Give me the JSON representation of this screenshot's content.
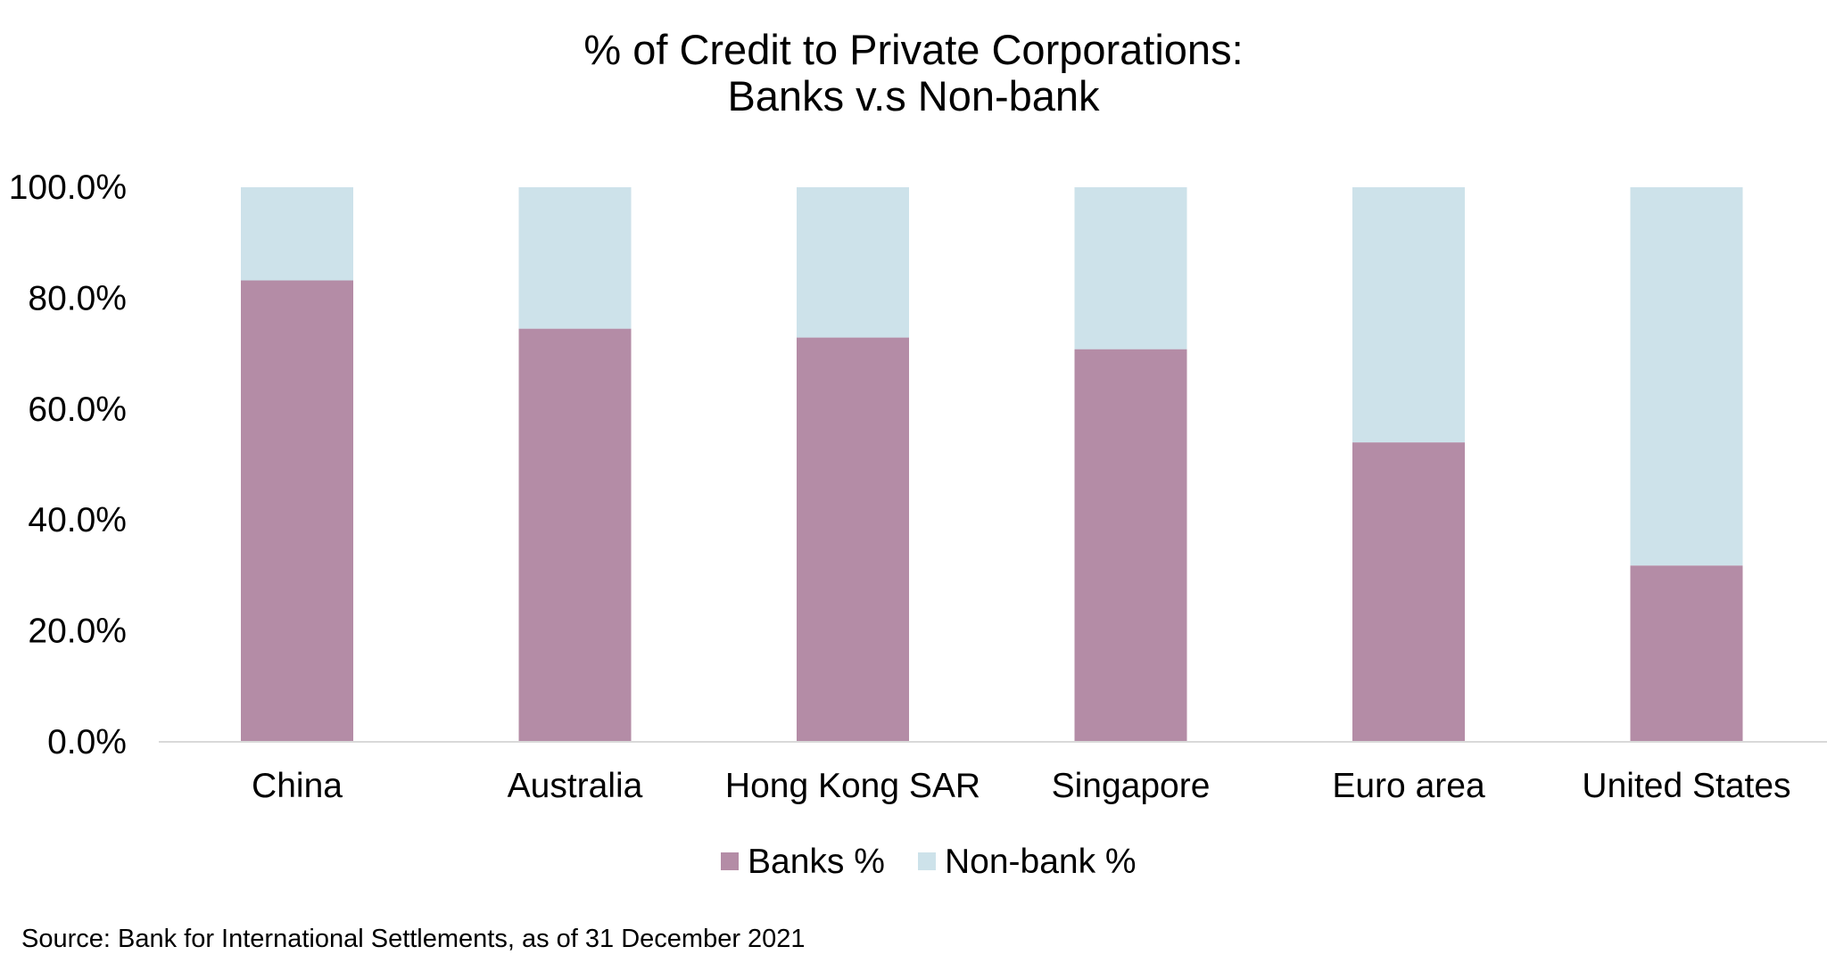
{
  "chart_data": {
    "type": "bar",
    "stacked": true,
    "title_lines": [
      "% of Credit to Private Corporations:",
      "Banks v.s Non-bank"
    ],
    "categories": [
      "China",
      "Australia",
      "Hong Kong SAR",
      "Singapore",
      "Euro area",
      "United States"
    ],
    "series": [
      {
        "name": "Banks %",
        "color": "#b48ca6",
        "values": [
          83.2,
          74.5,
          72.9,
          70.8,
          54.0,
          31.8
        ]
      },
      {
        "name": "Non-bank %",
        "color": "#cde2ea",
        "values": [
          16.8,
          25.5,
          27.1,
          29.2,
          46.0,
          68.2
        ]
      }
    ],
    "y_ticks": [
      "0.0%",
      "20.0%",
      "40.0%",
      "60.0%",
      "80.0%",
      "100.0%"
    ],
    "y_tick_values": [
      0,
      20,
      40,
      60,
      80,
      100
    ],
    "ylim": [
      0,
      100
    ],
    "grid": false,
    "legend_position": "bottom",
    "source": "Source: Bank for International Settlements, as of 31 December 2021"
  }
}
